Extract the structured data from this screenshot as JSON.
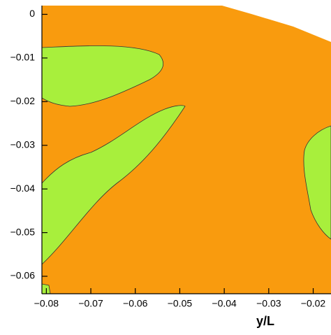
{
  "chart_data": {
    "type": "contour",
    "x_label": "y/L",
    "xlim": [
      -0.081,
      -0.016
    ],
    "ylim": [
      -0.064,
      0.002
    ],
    "xticks": [
      {
        "value": -0.08,
        "label": "−0.08"
      },
      {
        "value": -0.07,
        "label": "−0.07"
      },
      {
        "value": -0.06,
        "label": "−0.06"
      },
      {
        "value": -0.05,
        "label": "−0.05"
      },
      {
        "value": -0.04,
        "label": "−0.04"
      },
      {
        "value": -0.03,
        "label": "−0.03"
      },
      {
        "value": -0.02,
        "label": "−0.02"
      }
    ],
    "yticks": [
      0,
      {
        "value": -0.01,
        "label": "−0.01"
      },
      {
        "value": -0.02,
        "label": "−0.02"
      },
      {
        "value": -0.03,
        "label": "−0.03"
      },
      {
        "value": -0.04,
        "label": "−0.04"
      },
      {
        "value": -0.05,
        "label": "−0.05"
      },
      {
        "value": -0.06,
        "label": "−0.06"
      }
    ]
  }
}
